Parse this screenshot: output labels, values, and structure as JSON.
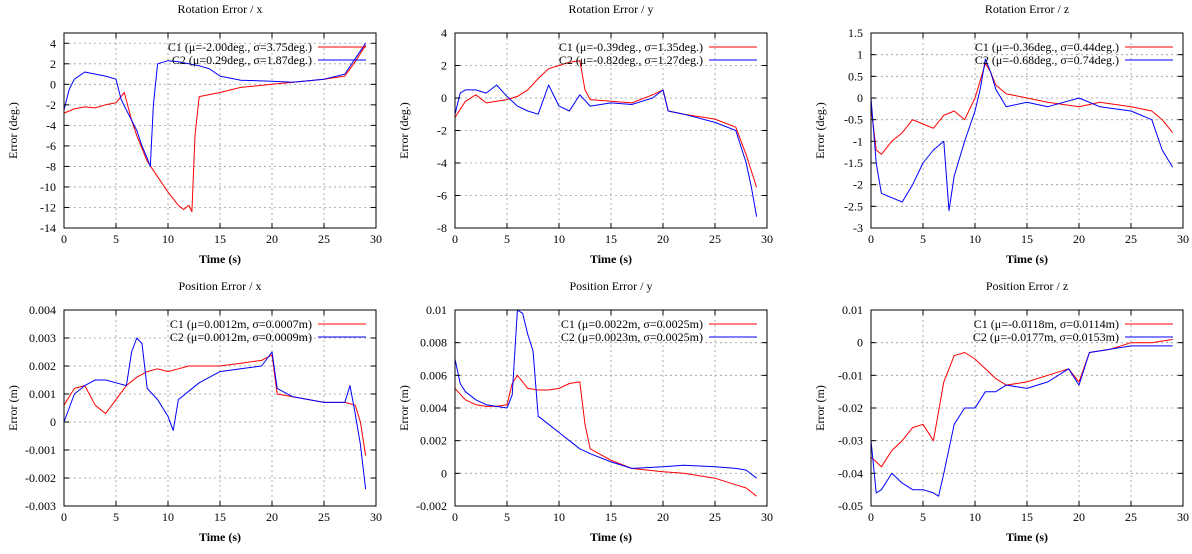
{
  "chart_data": [
    {
      "type": "line",
      "title": "Rotation Error / x",
      "xlabel": "Time (s)",
      "ylabel": "Error (deg.)",
      "xlim": [
        0,
        30
      ],
      "ylim": [
        -14,
        5
      ],
      "xticks": [
        0,
        5,
        10,
        15,
        20,
        25,
        30
      ],
      "yticks": [
        -14,
        -12,
        -10,
        -8,
        -6,
        -4,
        -2,
        0,
        2,
        4
      ],
      "grid": true,
      "legend": "top-right",
      "series": [
        {
          "name": "C1 (μ=-2.00deg., σ=3.75deg.)",
          "color": "#ff0000",
          "x": [
            0,
            1,
            2,
            3,
            4,
            5,
            5.8,
            6.5,
            7,
            8,
            9,
            10,
            11,
            11.5,
            12,
            12.3,
            12.6,
            13,
            15,
            17,
            20,
            22,
            25,
            27,
            28,
            29
          ],
          "y": [
            -2.8,
            -2.4,
            -2.2,
            -2.3,
            -2.0,
            -1.8,
            -0.8,
            -3.5,
            -5,
            -7.5,
            -9,
            -10.5,
            -11.8,
            -12.2,
            -11.8,
            -12.4,
            -5,
            -1.2,
            -0.8,
            -0.3,
            0,
            0.2,
            0.5,
            0.8,
            2.2,
            3.8
          ]
        },
        {
          "name": "C2 (μ=0.29deg., σ=1.87deg.)",
          "color": "#0000ff",
          "x": [
            0,
            0.5,
            1,
            2,
            3,
            4,
            5,
            5.5,
            6,
            7,
            7.5,
            8,
            8.3,
            8.6,
            9,
            10,
            11,
            12,
            13,
            14,
            15,
            17,
            20,
            22,
            25,
            27,
            28,
            29
          ],
          "y": [
            -2.5,
            -0.5,
            0.5,
            1.2,
            1,
            0.8,
            0.5,
            -1.5,
            -2.5,
            -4.5,
            -6,
            -7.2,
            -8,
            -2,
            2,
            2.3,
            2.2,
            2,
            1.8,
            1.5,
            0.8,
            0.4,
            0.3,
            0.2,
            0.5,
            1,
            2.5,
            4
          ]
        }
      ]
    },
    {
      "type": "line",
      "title": "Rotation Error / y",
      "xlabel": "Time (s)",
      "ylabel": "Error (deg.)",
      "xlim": [
        0,
        30
      ],
      "ylim": [
        -8,
        4
      ],
      "xticks": [
        0,
        5,
        10,
        15,
        20,
        25,
        30
      ],
      "yticks": [
        -8,
        -6,
        -4,
        -2,
        0,
        2,
        4
      ],
      "grid": true,
      "legend": "top-right",
      "series": [
        {
          "name": "C1 (μ=-0.39deg., σ=1.35deg.)",
          "color": "#ff0000",
          "x": [
            0,
            1,
            2,
            3,
            4,
            5,
            6,
            7,
            8,
            9,
            10,
            11,
            12,
            12.5,
            13,
            15,
            17,
            19,
            20,
            20.5,
            22,
            25,
            27,
            28,
            29
          ],
          "y": [
            -1.2,
            -0.2,
            0.2,
            -0.3,
            -0.2,
            -0.1,
            0.1,
            0.5,
            1.2,
            1.8,
            2.0,
            2.2,
            2.3,
            0.5,
            -0.1,
            -0.2,
            -0.3,
            0.2,
            0.5,
            -0.8,
            -1.0,
            -1.3,
            -1.8,
            -3.5,
            -5.5
          ]
        },
        {
          "name": "C2 (μ=-0.82deg., σ=1.27deg.)",
          "color": "#0000ff",
          "x": [
            0,
            0.5,
            1,
            2,
            3,
            4,
            5,
            6,
            7,
            8,
            9,
            10,
            11,
            12,
            13,
            15,
            17,
            19,
            20,
            20.5,
            22,
            25,
            27,
            28,
            28.5,
            29
          ],
          "y": [
            -1.0,
            0.3,
            0.5,
            0.5,
            0.3,
            0.8,
            0.1,
            -0.5,
            -0.8,
            -1.0,
            0.8,
            -0.5,
            -0.8,
            0.2,
            -0.5,
            -0.3,
            -0.4,
            0.0,
            0.5,
            -0.8,
            -1.0,
            -1.5,
            -2.0,
            -4.0,
            -5.5,
            -7.3
          ]
        }
      ]
    },
    {
      "type": "line",
      "title": "Rotation Error / z",
      "xlabel": "Time (s)",
      "ylabel": "Error (deg.)",
      "xlim": [
        0,
        30
      ],
      "ylim": [
        -3,
        1.5
      ],
      "xticks": [
        0,
        5,
        10,
        15,
        20,
        25,
        30
      ],
      "yticks": [
        -3,
        -2.5,
        -2,
        -1.5,
        -1,
        -0.5,
        0,
        0.5,
        1,
        1.5
      ],
      "grid": true,
      "legend": "top-right",
      "series": [
        {
          "name": "C1 (μ=-0.36deg., σ=0.44deg.)",
          "color": "#ff0000",
          "x": [
            0,
            0.5,
            1,
            2,
            3,
            4,
            5,
            6,
            7,
            8,
            9,
            10,
            10.5,
            11,
            11.5,
            12,
            13,
            15,
            17,
            20,
            22,
            25,
            27,
            28,
            29
          ],
          "y": [
            -0.2,
            -1.2,
            -1.3,
            -1.0,
            -0.8,
            -0.5,
            -0.6,
            -0.7,
            -0.4,
            -0.3,
            -0.5,
            0.0,
            0.4,
            0.8,
            0.6,
            0.3,
            0.1,
            0.0,
            -0.1,
            -0.2,
            -0.1,
            -0.2,
            -0.3,
            -0.5,
            -0.8
          ]
        },
        {
          "name": "C2 (μ=-0.68deg., σ=0.74deg.)",
          "color": "#0000ff",
          "x": [
            0,
            0.5,
            1,
            2,
            3,
            4,
            5,
            6,
            7,
            7.5,
            8,
            9,
            10,
            10.5,
            11,
            11.5,
            12,
            13,
            15,
            17,
            20,
            22,
            25,
            27,
            28,
            29
          ],
          "y": [
            0.0,
            -1.5,
            -2.2,
            -2.3,
            -2.4,
            -2.0,
            -1.5,
            -1.2,
            -1.0,
            -2.6,
            -1.8,
            -1.0,
            -0.3,
            0.2,
            0.9,
            0.6,
            0.2,
            -0.2,
            -0.1,
            -0.2,
            0.0,
            -0.2,
            -0.3,
            -0.5,
            -1.2,
            -1.6
          ]
        }
      ]
    },
    {
      "type": "line",
      "title": "Position Error / x",
      "xlabel": "Time (s)",
      "ylabel": "Error (m)",
      "xlim": [
        0,
        30
      ],
      "ylim": [
        -0.003,
        0.004
      ],
      "xticks": [
        0,
        5,
        10,
        15,
        20,
        25,
        30
      ],
      "yticks": [
        -0.003,
        -0.002,
        -0.001,
        0,
        0.001,
        0.002,
        0.003,
        0.004
      ],
      "ytick_labels": [
        "-0.003",
        "-0.002",
        "-0.001",
        "0",
        "0.001",
        "0.002",
        "0.003",
        "0.004"
      ],
      "grid": true,
      "legend": "top-right",
      "series": [
        {
          "name": "C1 (μ=0.0012m, σ=0.0007m)",
          "color": "#ff0000",
          "x": [
            0,
            1,
            2,
            3,
            4,
            5,
            6,
            7,
            8,
            9,
            10,
            11,
            12,
            13,
            15,
            17,
            19,
            20,
            20.5,
            22,
            25,
            27,
            28,
            28.5,
            29
          ],
          "y": [
            0.0006,
            0.0012,
            0.0013,
            0.0006,
            0.0003,
            0.0008,
            0.0013,
            0.0016,
            0.0018,
            0.0019,
            0.0018,
            0.0019,
            0.002,
            0.002,
            0.002,
            0.0021,
            0.0022,
            0.0024,
            0.001,
            0.0009,
            0.0007,
            0.0007,
            0.0006,
            0.0,
            -0.0012
          ]
        },
        {
          "name": "C2 (μ=0.0012m, σ=0.0009m)",
          "color": "#0000ff",
          "x": [
            0,
            1,
            2,
            3,
            4,
            5,
            6,
            6.5,
            7,
            7.5,
            8,
            9,
            10,
            10.5,
            11,
            12,
            13,
            15,
            17,
            19,
            20,
            20.5,
            22,
            25,
            27,
            27.5,
            28,
            28.5,
            29
          ],
          "y": [
            0.0,
            0.001,
            0.0013,
            0.0015,
            0.0015,
            0.0014,
            0.0013,
            0.0025,
            0.003,
            0.0028,
            0.0012,
            0.0008,
            0.0002,
            -0.0003,
            0.0008,
            0.0011,
            0.0014,
            0.0018,
            0.0019,
            0.002,
            0.0025,
            0.0012,
            0.0009,
            0.0007,
            0.0007,
            0.0013,
            0.0003,
            -0.0008,
            -0.0024
          ]
        }
      ]
    },
    {
      "type": "line",
      "title": "Position Error / y",
      "xlabel": "Time (s)",
      "ylabel": "Error (m)",
      "xlim": [
        0,
        30
      ],
      "ylim": [
        -0.002,
        0.01
      ],
      "xticks": [
        0,
        5,
        10,
        15,
        20,
        25,
        30
      ],
      "yticks": [
        -0.002,
        0,
        0.002,
        0.004,
        0.006,
        0.008,
        0.01
      ],
      "ytick_labels": [
        "-0.002",
        "0",
        "0.002",
        "0.004",
        "0.006",
        "0.008",
        "0.01"
      ],
      "grid": true,
      "legend": "top-right",
      "series": [
        {
          "name": "C1 (μ=0.0022m, σ=0.0025m)",
          "color": "#ff0000",
          "x": [
            0,
            1,
            2,
            3,
            4,
            5,
            5.5,
            6,
            7,
            8,
            9,
            10,
            11,
            12,
            12.5,
            13,
            15,
            17,
            20,
            22,
            25,
            27,
            28,
            29
          ],
          "y": [
            0.0052,
            0.0045,
            0.0042,
            0.0041,
            0.0041,
            0.0042,
            0.0055,
            0.006,
            0.0052,
            0.0051,
            0.0051,
            0.0052,
            0.0055,
            0.0056,
            0.003,
            0.0015,
            0.0008,
            0.0003,
            0.0001,
            0.0,
            -0.0003,
            -0.0007,
            -0.0009,
            -0.0014
          ]
        },
        {
          "name": "C2 (μ=0.0023m, σ=0.0025m)",
          "color": "#0000ff",
          "x": [
            0,
            0.5,
            1,
            2,
            3,
            4,
            5,
            5.5,
            6,
            6.5,
            7,
            7.5,
            8,
            9,
            10,
            11,
            12,
            13,
            15,
            17,
            20,
            22,
            25,
            27,
            28,
            29
          ],
          "y": [
            0.007,
            0.0055,
            0.005,
            0.0045,
            0.0042,
            0.0041,
            0.004,
            0.0048,
            0.01,
            0.0098,
            0.0085,
            0.0075,
            0.0035,
            0.003,
            0.0025,
            0.002,
            0.0015,
            0.0012,
            0.0007,
            0.0003,
            0.0004,
            0.0005,
            0.0004,
            0.0003,
            0.0002,
            -0.0003
          ]
        }
      ]
    },
    {
      "type": "line",
      "title": "Position Error / z",
      "xlabel": "Time (s)",
      "ylabel": "Error (m)",
      "xlim": [
        0,
        30
      ],
      "ylim": [
        -0.05,
        0.01
      ],
      "xticks": [
        0,
        5,
        10,
        15,
        20,
        25,
        30
      ],
      "yticks": [
        -0.05,
        -0.04,
        -0.03,
        -0.02,
        -0.01,
        0,
        0.01
      ],
      "ytick_labels": [
        "-0.05",
        "-0.04",
        "-0.03",
        "-0.02",
        "-0.01",
        "0",
        "0.01"
      ],
      "grid": true,
      "legend": "top-right",
      "series": [
        {
          "name": "C1 (μ=-0.0118m, σ=0.0114m)",
          "color": "#ff0000",
          "x": [
            0,
            1,
            2,
            3,
            4,
            5,
            6,
            7,
            8,
            9,
            10,
            11,
            12,
            13,
            15,
            17,
            19,
            20,
            21,
            23,
            25,
            27,
            29
          ],
          "y": [
            -0.035,
            -0.038,
            -0.033,
            -0.03,
            -0.026,
            -0.025,
            -0.03,
            -0.012,
            -0.004,
            -0.003,
            -0.005,
            -0.008,
            -0.011,
            -0.013,
            -0.012,
            -0.01,
            -0.008,
            -0.012,
            -0.003,
            -0.002,
            0.0,
            0.0,
            0.001
          ]
        },
        {
          "name": "C2 (μ=-0.0177m, σ=0.0153m)",
          "color": "#0000ff",
          "x": [
            0,
            0.5,
            1,
            2,
            3,
            4,
            5,
            6,
            6.5,
            7,
            8,
            9,
            10,
            11,
            12,
            13,
            15,
            17,
            19,
            20,
            21,
            23,
            25,
            27,
            29
          ],
          "y": [
            -0.03,
            -0.046,
            -0.045,
            -0.04,
            -0.043,
            -0.045,
            -0.045,
            -0.046,
            -0.047,
            -0.04,
            -0.025,
            -0.02,
            -0.02,
            -0.015,
            -0.015,
            -0.013,
            -0.014,
            -0.012,
            -0.008,
            -0.013,
            -0.003,
            -0.002,
            -0.001,
            -0.001,
            -0.001
          ]
        }
      ]
    }
  ]
}
